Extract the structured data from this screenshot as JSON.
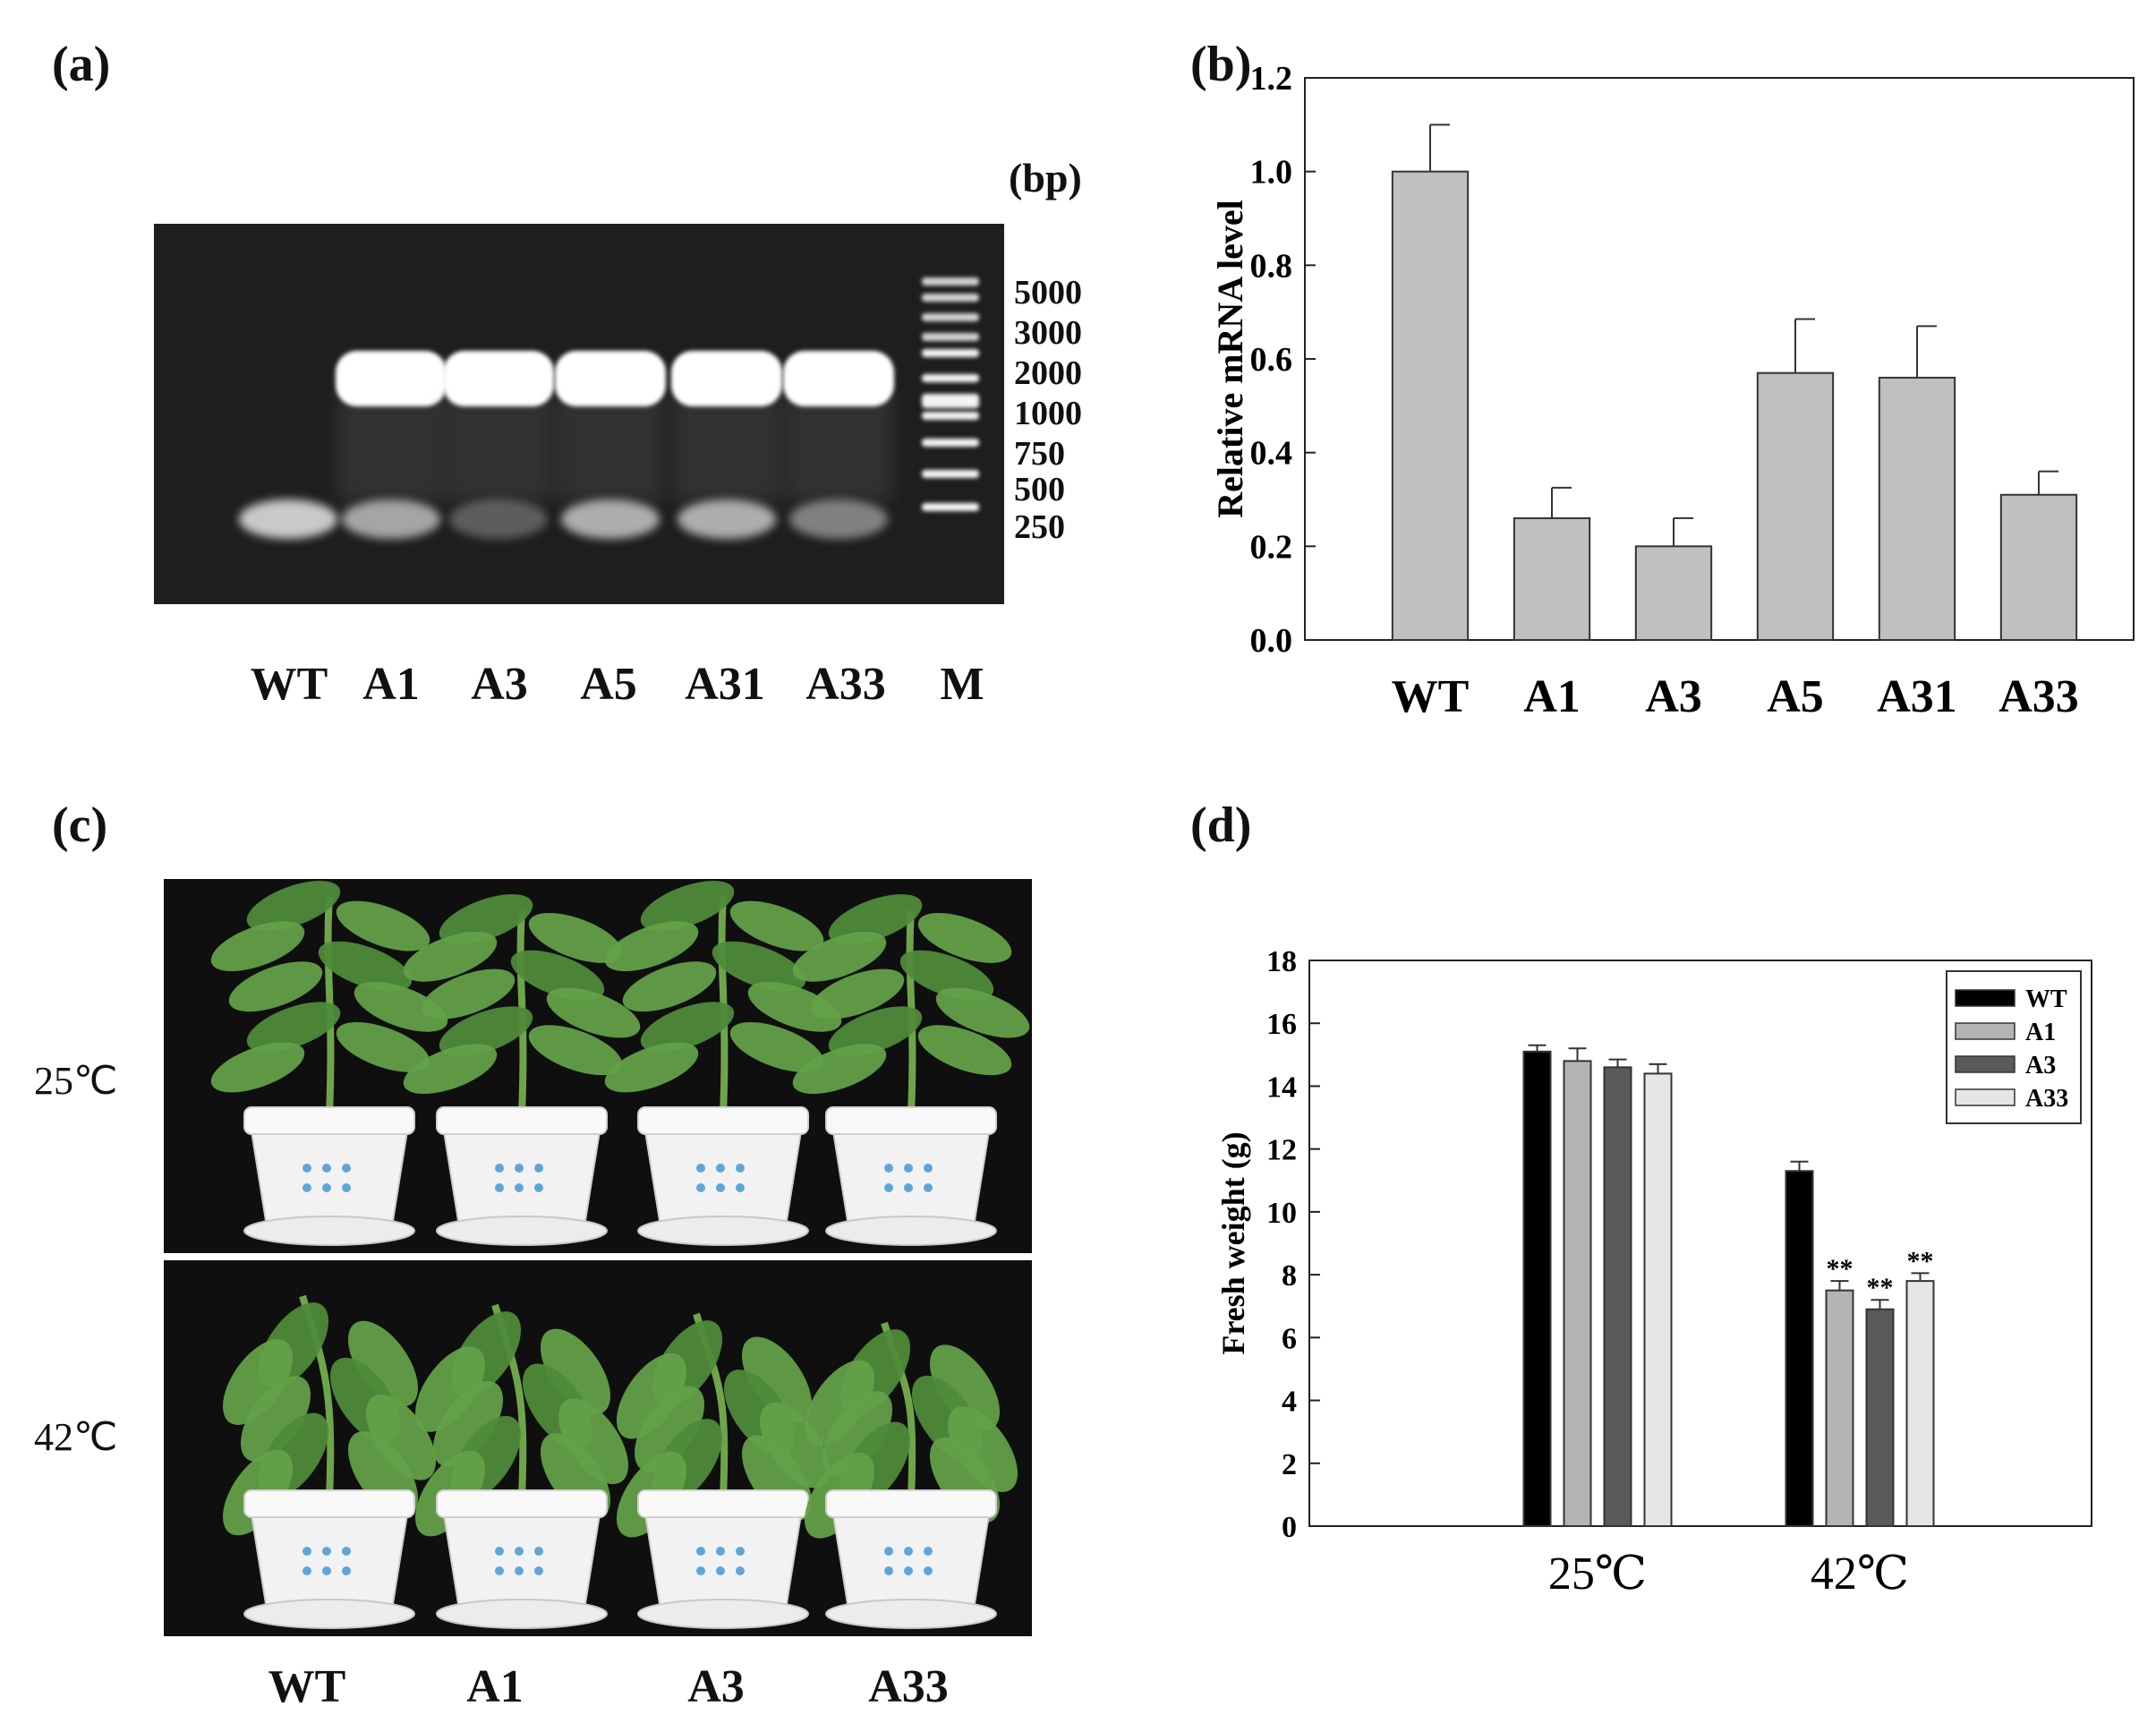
{
  "panels": {
    "a": {
      "label": "(a)"
    },
    "b": {
      "label": "(b)"
    },
    "c": {
      "label": "(c)"
    },
    "d": {
      "label": "(d)"
    }
  },
  "gel": {
    "unit": "(bp)",
    "marker_labels": [
      "5000",
      "3000",
      "2000",
      "1000",
      "750",
      "500",
      "250"
    ],
    "lanes": [
      "WT",
      "A1",
      "A3",
      "A5",
      "A31",
      "A33",
      "M"
    ]
  },
  "photo": {
    "temperatures": [
      "25℃",
      "42℃"
    ],
    "plants": [
      "WT",
      "A1",
      "A3",
      "A33"
    ]
  },
  "chart_data": [
    {
      "type": "bar",
      "panel": "b",
      "categories": [
        "WT",
        "A1",
        "A3",
        "A5",
        "A31",
        "A33"
      ],
      "values": [
        1.0,
        0.26,
        0.2,
        0.57,
        0.56,
        0.31
      ],
      "errors": [
        0.1,
        0.065,
        0.06,
        0.115,
        0.11,
        0.05
      ],
      "ylabel": "Relative mRNA level",
      "ylim": [
        0.0,
        1.2
      ],
      "yticks": [
        "0.0",
        "0.2",
        "0.4",
        "0.6",
        "0.8",
        "1.0",
        "1.2"
      ],
      "bar_color": "#c0c0c0",
      "grid": false
    },
    {
      "type": "bar",
      "panel": "d",
      "categories": [
        "25℃",
        "42℃"
      ],
      "series": [
        {
          "name": "WT",
          "values": [
            15.1,
            11.3
          ],
          "errors": [
            0.2,
            0.3
          ],
          "color": "#000000",
          "significance": [
            "",
            ""
          ]
        },
        {
          "name": "A1",
          "values": [
            14.8,
            7.5
          ],
          "errors": [
            0.4,
            0.3
          ],
          "color": "#b4b4b4",
          "significance": [
            "",
            "**"
          ]
        },
        {
          "name": "A3",
          "values": [
            14.6,
            6.9
          ],
          "errors": [
            0.25,
            0.3
          ],
          "color": "#5a5a5a",
          "significance": [
            "",
            "**"
          ]
        },
        {
          "name": "A33",
          "values": [
            14.4,
            7.8
          ],
          "errors": [
            0.3,
            0.25
          ],
          "color": "#e6e6e6",
          "significance": [
            "",
            "**"
          ]
        }
      ],
      "ylabel": "Fresh weight (g)",
      "ylim": [
        0,
        18
      ],
      "yticks": [
        "0",
        "2",
        "4",
        "6",
        "8",
        "10",
        "12",
        "14",
        "16",
        "18"
      ],
      "legend": "top-right",
      "grid": false
    }
  ]
}
